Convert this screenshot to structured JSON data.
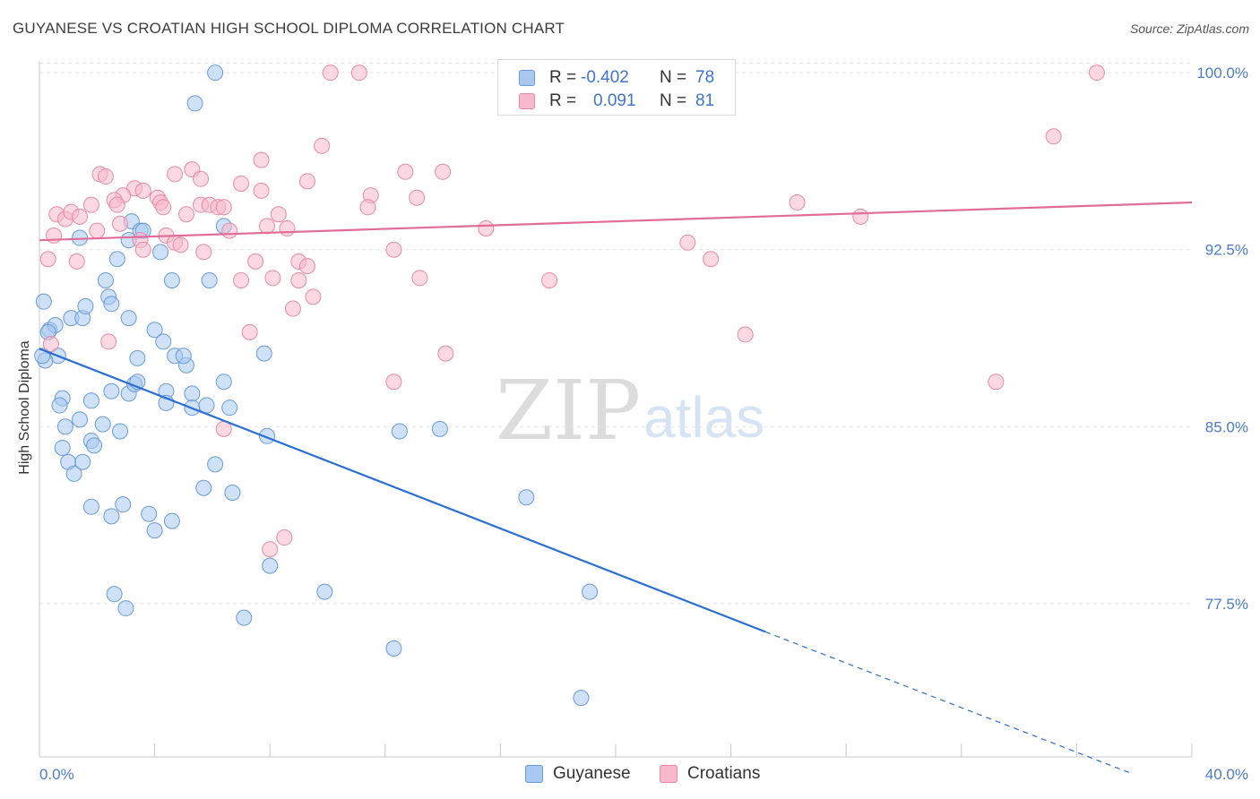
{
  "title": "GUYANESE VS CROATIAN HIGH SCHOOL DIPLOMA CORRELATION CHART",
  "source": "Source: ZipAtlas.com",
  "watermark": {
    "zip": "ZIP",
    "atlas": "atlas"
  },
  "legend": {
    "r_label": "R =",
    "n_label": "N =",
    "rows": [
      {
        "r": "-0.402",
        "n": "78",
        "color": "#a8c8f0",
        "border": "#6a9ad8"
      },
      {
        "r": "0.091",
        "n": "81",
        "color": "#f7b8cb",
        "border": "#e58aa6"
      }
    ]
  },
  "bottom_legend": [
    {
      "label": "Guyanese",
      "color": "#a8c8f0",
      "border": "#6a9ad8"
    },
    {
      "label": "Croatians",
      "color": "#f7b8cb",
      "border": "#e58aa6"
    }
  ],
  "chart_data": {
    "type": "scatter",
    "title": "GUYANESE VS CROATIAN HIGH SCHOOL DIPLOMA CORRELATION CHART",
    "xlabel": "",
    "ylabel": "High School Diploma",
    "xlim": [
      0,
      40
    ],
    "ylim": [
      71,
      100.5
    ],
    "x_tick_labels": [
      "0.0%",
      "40.0%"
    ],
    "y_ticks": [
      77.5,
      85.0,
      92.5,
      100.0
    ],
    "y_tick_labels": [
      "77.5%",
      "85.0%",
      "92.5%",
      "100.0%"
    ],
    "grid": true,
    "series": [
      {
        "name": "Guyanese",
        "color": "#a8c8f0",
        "stroke": "#6a9ad8",
        "trend": {
          "x0": 0,
          "y0": 88.3,
          "x1": 25.2,
          "y1": 76.3,
          "dash_to_x": 37.9,
          "dash_to_y": 70.3,
          "color": "#2a6fd1"
        },
        "points": [
          [
            6.1,
            100.0
          ],
          [
            5.4,
            98.7
          ],
          [
            0.15,
            90.3
          ],
          [
            0.35,
            89.1
          ],
          [
            0.55,
            89.3
          ],
          [
            0.65,
            88.0
          ],
          [
            0.2,
            87.8
          ],
          [
            0.1,
            88.0
          ],
          [
            1.1,
            89.6
          ],
          [
            1.5,
            89.6
          ],
          [
            1.6,
            90.1
          ],
          [
            2.3,
            91.2
          ],
          [
            2.4,
            90.5
          ],
          [
            2.5,
            90.2
          ],
          [
            2.7,
            92.1
          ],
          [
            3.1,
            89.6
          ],
          [
            3.2,
            93.7
          ],
          [
            3.5,
            93.3
          ],
          [
            3.6,
            93.3
          ],
          [
            3.1,
            92.9
          ],
          [
            4.2,
            92.4
          ],
          [
            4.6,
            91.2
          ],
          [
            5.9,
            91.2
          ],
          [
            6.4,
            93.5
          ],
          [
            1.4,
            93.0
          ],
          [
            0.8,
            86.2
          ],
          [
            0.7,
            85.9
          ],
          [
            0.9,
            85.0
          ],
          [
            1.4,
            85.3
          ],
          [
            1.8,
            86.1
          ],
          [
            2.2,
            85.1
          ],
          [
            1.8,
            84.4
          ],
          [
            1.9,
            84.2
          ],
          [
            2.8,
            84.8
          ],
          [
            2.5,
            86.5
          ],
          [
            3.1,
            86.4
          ],
          [
            3.3,
            86.8
          ],
          [
            3.4,
            86.9
          ],
          [
            3.4,
            87.9
          ],
          [
            4.0,
            89.1
          ],
          [
            4.3,
            88.6
          ],
          [
            4.7,
            88.0
          ],
          [
            5.1,
            87.6
          ],
          [
            4.4,
            86.5
          ],
          [
            4.4,
            86.0
          ],
          [
            5.3,
            86.4
          ],
          [
            5.3,
            85.8
          ],
          [
            5.8,
            85.9
          ],
          [
            6.4,
            86.9
          ],
          [
            6.6,
            85.8
          ],
          [
            7.8,
            88.1
          ],
          [
            7.9,
            84.6
          ],
          [
            0.8,
            84.1
          ],
          [
            1.0,
            83.5
          ],
          [
            1.2,
            83.0
          ],
          [
            1.5,
            83.5
          ],
          [
            6.1,
            83.4
          ],
          [
            5.7,
            82.4
          ],
          [
            6.7,
            82.2
          ],
          [
            1.8,
            81.6
          ],
          [
            2.5,
            81.2
          ],
          [
            2.9,
            81.7
          ],
          [
            3.8,
            81.3
          ],
          [
            4.0,
            80.6
          ],
          [
            4.6,
            81.0
          ],
          [
            8.0,
            79.1
          ],
          [
            2.6,
            77.9
          ],
          [
            3.0,
            77.3
          ],
          [
            7.1,
            76.9
          ],
          [
            9.9,
            78.0
          ],
          [
            12.5,
            84.8
          ],
          [
            13.9,
            84.9
          ],
          [
            16.9,
            82.0
          ],
          [
            19.1,
            78.0
          ],
          [
            12.3,
            75.6
          ],
          [
            18.8,
            73.5
          ],
          [
            0.3,
            89.0
          ],
          [
            5.0,
            88.0
          ]
        ]
      },
      {
        "name": "Croatians",
        "color": "#f7b8cb",
        "stroke": "#e58aa6",
        "trend": {
          "x0": 0,
          "y0": 92.9,
          "x1": 40.0,
          "y1": 94.5,
          "color": "#e06d97"
        },
        "points": [
          [
            10.1,
            100.0
          ],
          [
            11.1,
            100.0
          ],
          [
            18.3,
            100.0
          ],
          [
            22.1,
            100.0
          ],
          [
            36.7,
            100.0
          ],
          [
            17.1,
            99.0
          ],
          [
            35.2,
            97.3
          ],
          [
            9.8,
            96.9
          ],
          [
            7.7,
            96.3
          ],
          [
            12.7,
            95.8
          ],
          [
            14.0,
            95.8
          ],
          [
            2.1,
            95.7
          ],
          [
            2.3,
            95.6
          ],
          [
            4.7,
            95.7
          ],
          [
            5.3,
            95.9
          ],
          [
            5.6,
            95.5
          ],
          [
            9.3,
            95.4
          ],
          [
            7.0,
            95.3
          ],
          [
            7.7,
            95.0
          ],
          [
            11.5,
            94.8
          ],
          [
            13.1,
            94.7
          ],
          [
            3.3,
            95.1
          ],
          [
            2.9,
            94.8
          ],
          [
            3.6,
            95.0
          ],
          [
            4.1,
            94.7
          ],
          [
            4.2,
            94.5
          ],
          [
            2.6,
            94.6
          ],
          [
            2.7,
            94.4
          ],
          [
            1.8,
            94.4
          ],
          [
            5.6,
            94.4
          ],
          [
            5.9,
            94.4
          ],
          [
            6.2,
            94.3
          ],
          [
            6.4,
            94.3
          ],
          [
            0.6,
            94.0
          ],
          [
            0.9,
            93.8
          ],
          [
            1.1,
            94.1
          ],
          [
            1.4,
            93.9
          ],
          [
            4.3,
            94.3
          ],
          [
            5.1,
            94.0
          ],
          [
            8.3,
            94.0
          ],
          [
            11.4,
            94.3
          ],
          [
            26.3,
            94.5
          ],
          [
            28.5,
            93.9
          ],
          [
            2.8,
            93.6
          ],
          [
            2.0,
            93.3
          ],
          [
            3.5,
            92.9
          ],
          [
            3.6,
            92.5
          ],
          [
            4.4,
            93.1
          ],
          [
            4.7,
            92.8
          ],
          [
            4.9,
            92.7
          ],
          [
            5.7,
            92.4
          ],
          [
            6.6,
            93.3
          ],
          [
            7.9,
            93.5
          ],
          [
            8.6,
            93.4
          ],
          [
            15.5,
            93.4
          ],
          [
            12.3,
            92.5
          ],
          [
            0.5,
            93.1
          ],
          [
            0.3,
            92.1
          ],
          [
            1.3,
            92.0
          ],
          [
            7.5,
            92.0
          ],
          [
            9.0,
            92.0
          ],
          [
            9.3,
            91.8
          ],
          [
            7.0,
            91.2
          ],
          [
            8.1,
            91.3
          ],
          [
            9.0,
            91.2
          ],
          [
            9.5,
            90.5
          ],
          [
            8.8,
            90.0
          ],
          [
            13.2,
            91.3
          ],
          [
            17.7,
            91.2
          ],
          [
            22.5,
            92.8
          ],
          [
            23.3,
            92.1
          ],
          [
            7.3,
            89.0
          ],
          [
            2.4,
            88.6
          ],
          [
            14.1,
            88.1
          ],
          [
            24.5,
            88.9
          ],
          [
            12.3,
            86.9
          ],
          [
            33.2,
            86.9
          ],
          [
            6.4,
            84.9
          ],
          [
            8.5,
            80.3
          ],
          [
            8.0,
            79.8
          ],
          [
            0.4,
            88.5
          ]
        ]
      }
    ]
  }
}
